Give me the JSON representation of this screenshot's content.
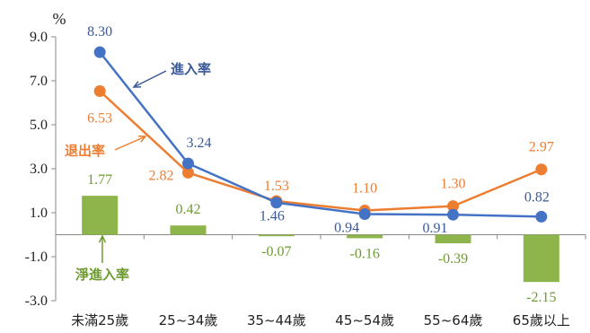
{
  "chart_data": {
    "type": "bar+line",
    "unit": "%",
    "categories": [
      "未滿25歲",
      "25~34歲",
      "35~44歲",
      "45~54歲",
      "55~64歲",
      "65歲以上"
    ],
    "yticks": [
      "9.0",
      "7.0",
      "5.0",
      "3.0",
      "1.0",
      "-1.0",
      "-3.0"
    ],
    "ylim": [
      -3,
      9
    ],
    "series": [
      {
        "name": "進入率",
        "type": "line",
        "color": "#4472C4",
        "values": [
          8.3,
          3.24,
          1.46,
          0.94,
          0.91,
          0.82
        ],
        "labels": [
          "8.30",
          "3.24",
          "1.46",
          "0.94",
          "0.91",
          "0.82"
        ]
      },
      {
        "name": "退出率",
        "type": "line",
        "color": "#ED7D31",
        "values": [
          6.53,
          2.82,
          1.53,
          1.1,
          1.3,
          2.97
        ],
        "labels": [
          "6.53",
          "2.82",
          "1.53",
          "1.10",
          "1.30",
          "2.97"
        ]
      },
      {
        "name": "淨進入率",
        "type": "bar",
        "color": "#8DB54B",
        "values": [
          1.77,
          0.42,
          -0.07,
          -0.16,
          -0.39,
          -2.15
        ],
        "labels": [
          "1.77",
          "0.42",
          "-0.07",
          "-0.16",
          "-0.39",
          "-2.15"
        ]
      }
    ],
    "annotations": [
      {
        "text": "進入率",
        "series": "進入率"
      },
      {
        "text": "退出率",
        "series": "退出率"
      },
      {
        "text": "淨進入率",
        "series": "淨進入率"
      }
    ]
  }
}
